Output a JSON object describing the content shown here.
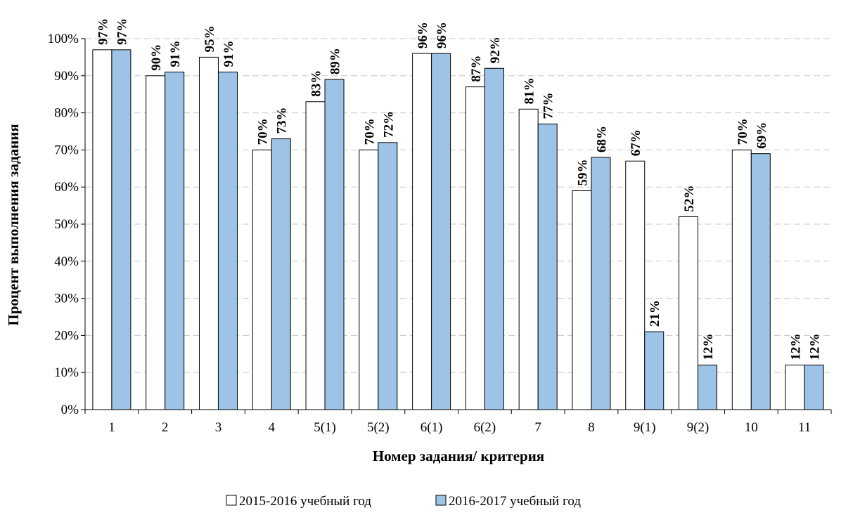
{
  "chart_data": {
    "type": "bar",
    "title": "",
    "xlabel": "Номер задания/ критерия",
    "ylabel": "Процент выполнения задания",
    "ylim": [
      0,
      100
    ],
    "ytick_step": 10,
    "ytick_suffix": "%",
    "grid": "horizontal-dashed",
    "legend_position": "bottom",
    "categories": [
      "1",
      "2",
      "3",
      "4",
      "5(1)",
      "5(2)",
      "6(1)",
      "6(2)",
      "7",
      "8",
      "9(1)",
      "9(2)",
      "10",
      "11"
    ],
    "series": [
      {
        "name": "2015-2016 учебный год",
        "color": "#ffffff",
        "values": [
          97,
          90,
          95,
          70,
          83,
          70,
          96,
          87,
          81,
          59,
          67,
          52,
          70,
          12
        ]
      },
      {
        "name": "2016-2017 учебный год",
        "color": "#9dc3e6",
        "values": [
          97,
          91,
          91,
          73,
          89,
          72,
          96,
          92,
          77,
          68,
          21,
          12,
          69,
          12
        ]
      }
    ],
    "data_label_suffix": "%"
  }
}
